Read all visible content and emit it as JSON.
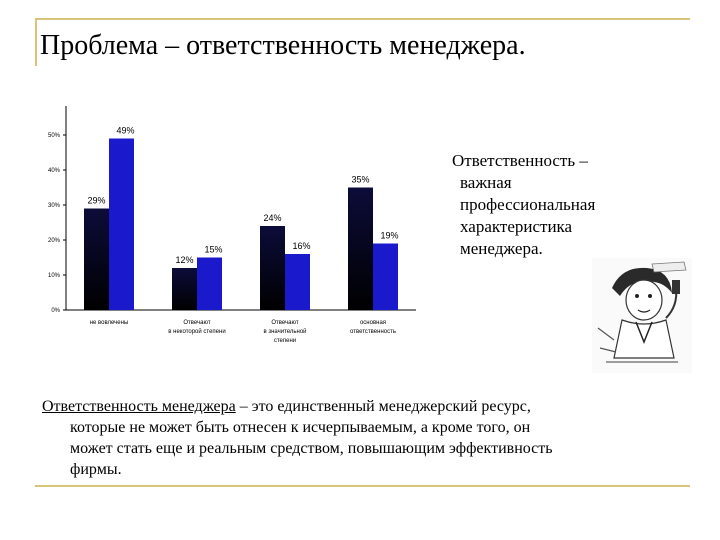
{
  "title": "Проблема – ответственность менеджера.",
  "side_text": {
    "line1": "Ответственность –",
    "lines": [
      "важная",
      "профессиональная",
      "характеристика",
      "менеджера."
    ]
  },
  "bottom_text": {
    "term": "Ответственность менеджера",
    "first_rest": " – это единственный менеджерский ресурс,",
    "lines": [
      "которые не может быть отнесен к исчерпываемым, а кроме того, он",
      "может стать еще и реальным средством, повышающим эффективность",
      "фирмы."
    ]
  },
  "colors": {
    "frame": "#d8c47a",
    "series_dark": "#0c0c3a",
    "series_blue": "#1a1acc"
  },
  "chart_data": {
    "type": "bar",
    "categories": [
      [
        "не вовлечены"
      ],
      [
        "Отвечают",
        "в некоторой степени"
      ],
      [
        "Отвечают",
        "в значительной",
        "степени"
      ],
      [
        "основная",
        "ответственность"
      ]
    ],
    "series": [
      {
        "values": [
          29,
          12,
          24,
          35
        ],
        "labels": [
          "29%",
          "12%",
          "24%",
          "35%"
        ],
        "color": "#0c0c3a"
      },
      {
        "values": [
          49,
          15,
          16,
          19
        ],
        "labels": [
          "49%",
          "15%",
          "16%",
          "19%"
        ],
        "color": "#1a1acc"
      }
    ],
    "y_ticks": [
      "0%",
      "10%",
      "20%",
      "30%",
      "40%",
      "50%"
    ],
    "ylim": [
      0,
      55
    ],
    "grid": false
  }
}
